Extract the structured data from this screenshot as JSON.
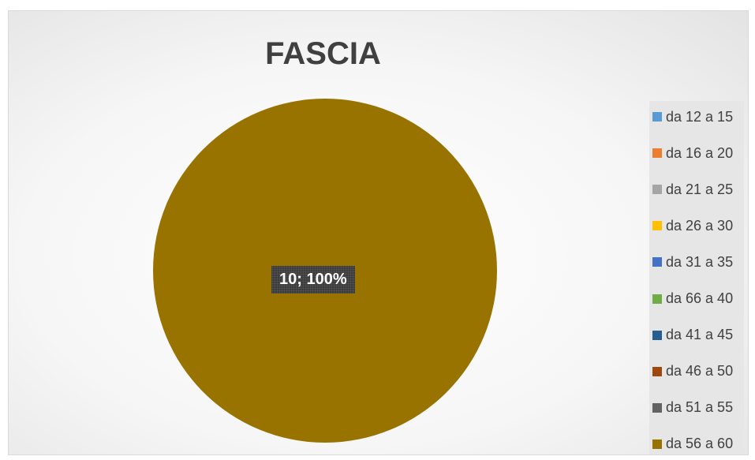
{
  "chart_data": {
    "type": "pie",
    "title": "FASCIA",
    "categories": [
      "da 12 a 15",
      "da 16 a 20",
      "da 21 a 25",
      "da 26 a 30",
      "da 31 a 35",
      "da 66 a 40",
      "da 41 a 45",
      "da 46 a 50",
      "da 51 a 55",
      "da 56 a 60"
    ],
    "values": [
      0,
      0,
      0,
      0,
      0,
      0,
      0,
      0,
      0,
      10
    ],
    "colors": [
      "#5b9bd5",
      "#ed7d31",
      "#a5a5a5",
      "#ffc000",
      "#4472c4",
      "#70ad47",
      "#255e91",
      "#9e480e",
      "#636363",
      "#997300"
    ],
    "data_labels": [
      "",
      "",
      "",
      "",
      "",
      "",
      "",
      "",
      "",
      "10; 100%"
    ],
    "legend_position": "right"
  }
}
